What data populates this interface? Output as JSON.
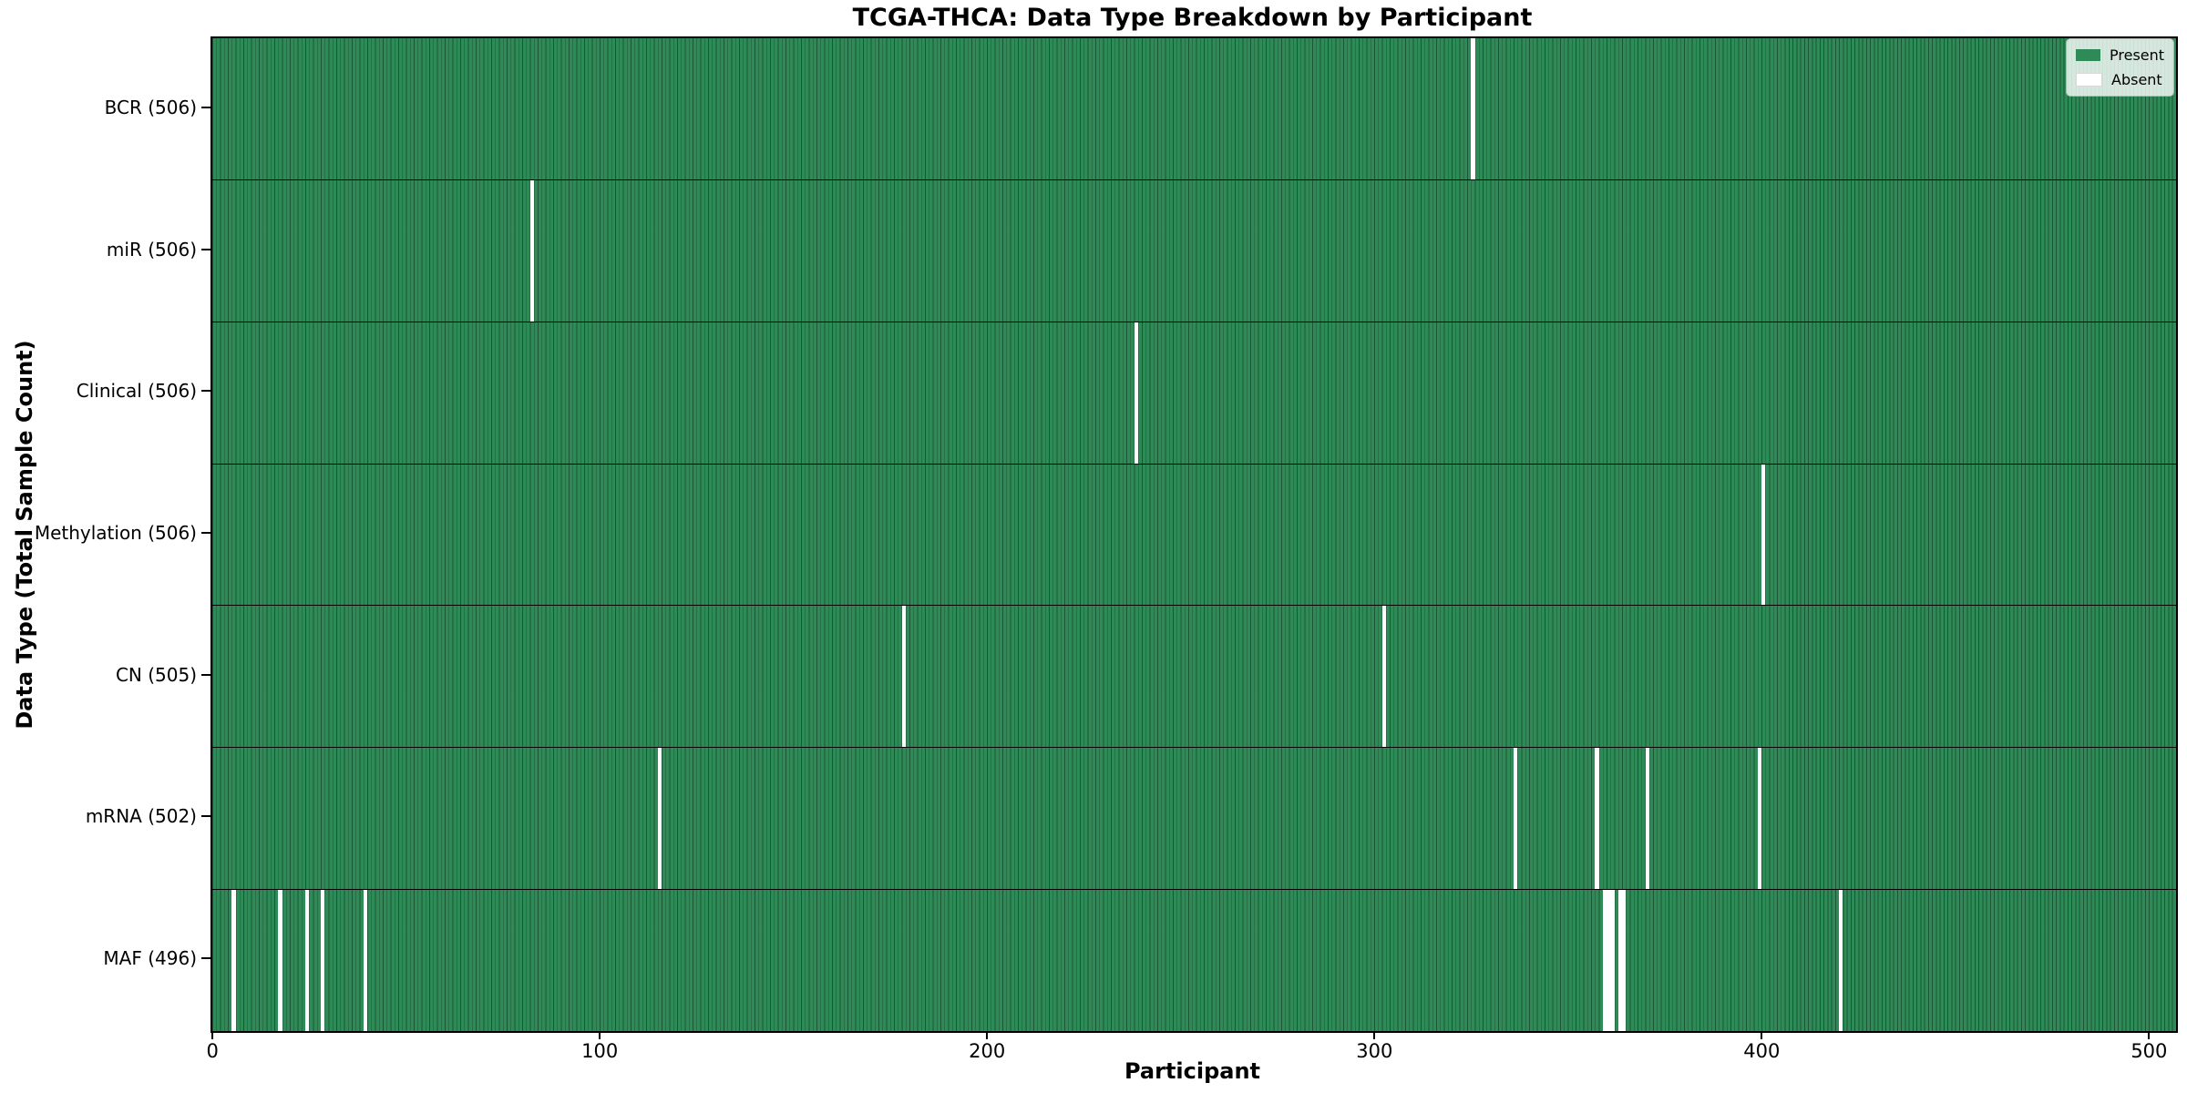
{
  "title": "TCGA-THCA: Data Type Breakdown by Participant",
  "chart_data": {
    "type": "heatmap",
    "title": "TCGA-THCA: Data Type Breakdown by Participant",
    "xlabel": "Participant",
    "ylabel": "Data Type (Total Sample Count)",
    "x_ticks": [
      0,
      100,
      200,
      300,
      400,
      500
    ],
    "x_range": [
      -0.5,
      506.5
    ],
    "total_participants": 507,
    "grid": false,
    "legend_position": "upper right",
    "legend": [
      {
        "label": "Present",
        "color": "#2E8B57"
      },
      {
        "label": "Absent",
        "color": "#ffffff"
      }
    ],
    "rows": [
      {
        "name": "bcr",
        "label": "BCR (506)",
        "present_count": 506,
        "absent_indices": [
          325
        ]
      },
      {
        "name": "mir",
        "label": "miR (506)",
        "present_count": 506,
        "absent_indices": [
          82
        ]
      },
      {
        "name": "clinical",
        "label": "Clinical (506)",
        "present_count": 506,
        "absent_indices": [
          238
        ]
      },
      {
        "name": "methylation",
        "label": "Methylation (506)",
        "present_count": 506,
        "absent_indices": [
          400
        ]
      },
      {
        "name": "cn",
        "label": "CN (505)",
        "present_count": 505,
        "absent_indices": [
          178,
          302
        ]
      },
      {
        "name": "mrna",
        "label": "mRNA (502)",
        "present_count": 502,
        "absent_indices": [
          115,
          336,
          357,
          370,
          399
        ]
      },
      {
        "name": "maf",
        "label": "MAF (496)",
        "present_count": 496,
        "absent_indices": [
          5,
          17,
          24,
          28,
          39,
          359,
          360,
          361,
          363,
          364,
          420
        ]
      }
    ],
    "colors": {
      "present": "#2E8B57",
      "absent": "#ffffff",
      "bar_edge": "rgba(0,0,0,0.38)",
      "spine": "#000000",
      "background": "#ffffff"
    }
  }
}
